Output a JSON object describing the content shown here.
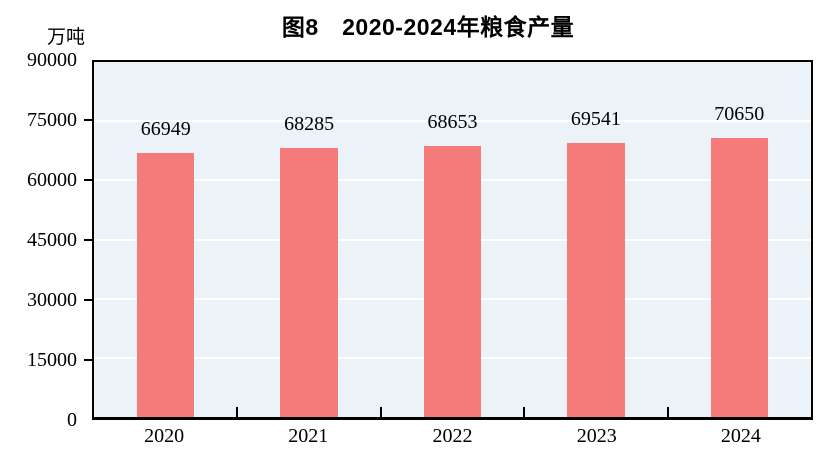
{
  "chart": {
    "title": "图8　2020-2024年粮食产量",
    "unit_label": "万吨",
    "colors": {
      "bar": "#f57b7b",
      "plot_background": "#ebf3f9",
      "gridline": "#ffffff",
      "axis": "#000000",
      "text": "#000000"
    }
  },
  "chart_data": {
    "type": "bar",
    "title": "图8　2020-2024年粮食产量",
    "ylabel": "万吨",
    "xlabel": "",
    "categories": [
      "2020",
      "2021",
      "2022",
      "2023",
      "2024"
    ],
    "values": [
      66949,
      68285,
      68653,
      69541,
      70650
    ],
    "bar_labels": [
      "66949",
      "68285",
      "68653",
      "69541",
      "70650"
    ],
    "ylim": [
      0,
      90000
    ],
    "yticks": [
      0,
      15000,
      30000,
      45000,
      60000,
      75000,
      90000
    ],
    "ytick_labels": [
      "0",
      "15000",
      "30000",
      "45000",
      "60000",
      "75000",
      "90000"
    ],
    "grid": true,
    "legend": false,
    "bar_color": "#f57b7b",
    "data_labels": true
  }
}
